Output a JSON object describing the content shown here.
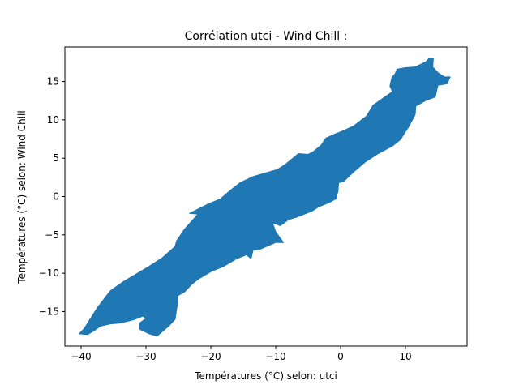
{
  "chart_data": {
    "type": "area",
    "title": "Corrélation utci - Wind Chill :",
    "xlabel": "Températures (°C) selon: utci",
    "ylabel": "Températures (°C) selon: Wind Chill",
    "xlim": [
      -42.5,
      19.5
    ],
    "ylim": [
      -19.5,
      19.5
    ],
    "xticks": [
      -40,
      -30,
      -20,
      -10,
      0,
      10
    ],
    "yticks": [
      -15,
      -10,
      -5,
      0,
      5,
      10,
      15
    ],
    "grid": false,
    "legend": "none",
    "series": [
      {
        "color": "#1f77b4",
        "boundary": [
          [
            -40.3,
            -17.9
          ],
          [
            -39.5,
            -17.2
          ],
          [
            -37.5,
            -14.5
          ],
          [
            -35.5,
            -12.3
          ],
          [
            -33.5,
            -11.1
          ],
          [
            -31.5,
            -10.1
          ],
          [
            -29.5,
            -9.1
          ],
          [
            -27.5,
            -8.0
          ],
          [
            -25.5,
            -6.5
          ],
          [
            -25.3,
            -5.8
          ],
          [
            -24.0,
            -4.2
          ],
          [
            -22.0,
            -2.3
          ],
          [
            -23.3,
            -2.2
          ],
          [
            -20.5,
            -1.0
          ],
          [
            -18.5,
            -0.3
          ],
          [
            -17.0,
            0.8
          ],
          [
            -15.5,
            1.8
          ],
          [
            -13.5,
            2.6
          ],
          [
            -11.5,
            3.1
          ],
          [
            -9.8,
            3.5
          ],
          [
            -8.5,
            4.2
          ],
          [
            -7.5,
            4.9
          ],
          [
            -6.5,
            5.6
          ],
          [
            -5.0,
            5.5
          ],
          [
            -4.3,
            5.8
          ],
          [
            -3.0,
            6.7
          ],
          [
            -2.3,
            7.6
          ],
          [
            -1.0,
            8.1
          ],
          [
            0.5,
            8.6
          ],
          [
            2.0,
            9.2
          ],
          [
            4.0,
            10.5
          ],
          [
            5.0,
            11.9
          ],
          [
            6.5,
            12.8
          ],
          [
            8.0,
            13.7
          ],
          [
            7.6,
            14.4
          ],
          [
            7.9,
            15.5
          ],
          [
            8.4,
            16.0
          ],
          [
            8.7,
            16.6
          ],
          [
            10.0,
            16.8
          ],
          [
            11.5,
            16.9
          ],
          [
            12.5,
            17.3
          ],
          [
            13.2,
            17.6
          ],
          [
            13.6,
            18.0
          ],
          [
            14.3,
            18.0
          ],
          [
            14.2,
            16.9
          ],
          [
            15.1,
            16.1
          ],
          [
            16.0,
            15.6
          ],
          [
            16.9,
            15.6
          ],
          [
            16.4,
            14.7
          ],
          [
            15.0,
            14.5
          ],
          [
            14.6,
            13.0
          ],
          [
            13.1,
            12.5
          ],
          [
            11.6,
            11.8
          ],
          [
            11.5,
            10.7
          ],
          [
            10.5,
            9.1
          ],
          [
            9.2,
            7.4
          ],
          [
            8.0,
            6.6
          ],
          [
            5.8,
            5.6
          ],
          [
            3.8,
            4.5
          ],
          [
            2.0,
            3.2
          ],
          [
            0.5,
            2.0
          ],
          [
            -0.3,
            1.8
          ],
          [
            -0.4,
            0.7
          ],
          [
            -0.7,
            -0.3
          ],
          [
            -1.8,
            -0.8
          ],
          [
            -3.3,
            -1.3
          ],
          [
            -4.4,
            -1.9
          ],
          [
            -6.8,
            -2.7
          ],
          [
            -8.0,
            -3.0
          ],
          [
            -9.3,
            -3.8
          ],
          [
            -10.5,
            -3.4
          ],
          [
            -10.0,
            -4.6
          ],
          [
            -8.8,
            -6.0
          ],
          [
            -10.0,
            -6.0
          ],
          [
            -12.5,
            -6.9
          ],
          [
            -13.5,
            -7.0
          ],
          [
            -13.8,
            -8.1
          ],
          [
            -14.5,
            -7.6
          ],
          [
            -16.0,
            -8.1
          ],
          [
            -18.0,
            -9.1
          ],
          [
            -20.0,
            -9.8
          ],
          [
            -22.0,
            -10.8
          ],
          [
            -23.0,
            -11.5
          ],
          [
            -24.0,
            -12.4
          ],
          [
            -25.2,
            -13.0
          ],
          [
            -25.1,
            -13.8
          ],
          [
            -25.3,
            -14.8
          ],
          [
            -25.5,
            -16.0
          ],
          [
            -26.5,
            -16.9
          ],
          [
            -28.3,
            -18.2
          ],
          [
            -29.5,
            -17.9
          ],
          [
            -31.0,
            -17.3
          ],
          [
            -31.0,
            -16.5
          ],
          [
            -30.0,
            -15.9
          ],
          [
            -30.5,
            -15.6
          ],
          [
            -32.0,
            -16.1
          ],
          [
            -34.0,
            -16.5
          ],
          [
            -35.5,
            -16.6
          ],
          [
            -37.0,
            -16.9
          ],
          [
            -38.0,
            -17.5
          ],
          [
            -39.0,
            -18.0
          ]
        ]
      }
    ]
  }
}
